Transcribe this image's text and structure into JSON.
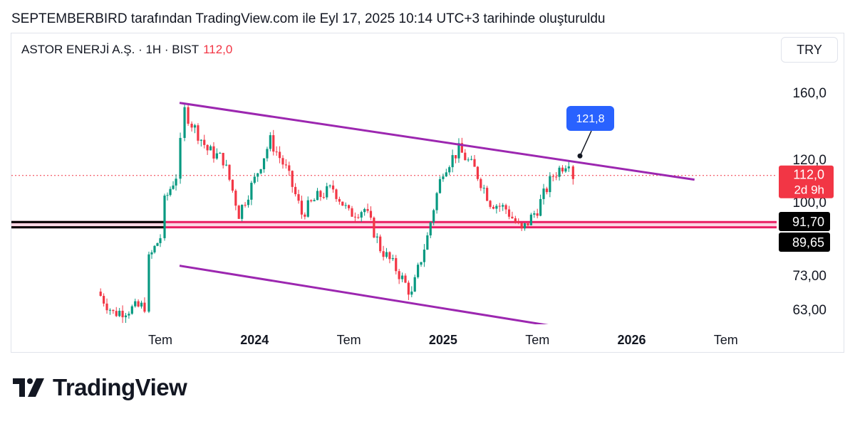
{
  "header": {
    "attribution": "SEPTEMBERBIRD tarafından TradingView.com ile Eyl 17, 2025 10:14 UTC+3 tarihinde oluşturuldu"
  },
  "legend": {
    "symbol_info": "ASTOR ENERJİ A.Ş. · 1H · BIST",
    "last_price": "112,0"
  },
  "currency": "TRY",
  "brand": {
    "name": "TradingView"
  },
  "colors": {
    "up": "#089981",
    "down": "#f23645",
    "trendline": "#9c27b0",
    "support_band": "#e91e63",
    "price_line": "#f23645",
    "callout": "#2962ff"
  },
  "chart_data": {
    "type": "candlestick",
    "symbol": "ASTOR ENERJİ A.Ş.",
    "interval": "1H",
    "exchange": "BIST",
    "y_scale": "log",
    "ylim": [
      57,
      180
    ],
    "y_ticks": [
      "160,0",
      "120,0",
      "100,0",
      "73,00",
      "63,00"
    ],
    "x_ticks": [
      "Tem",
      "2024",
      "Tem",
      "2025",
      "Tem",
      "2026",
      "Tem"
    ],
    "last_price": 112.0,
    "last_price_label": "112,0",
    "countdown_label": "2d 9h",
    "annotation": {
      "label": "121,8",
      "value": 121.8
    },
    "support_levels": [
      {
        "value": 91.7,
        "label": "91,70"
      },
      {
        "value": 89.65,
        "label": "89,65"
      }
    ],
    "trendlines": [
      {
        "name": "upper",
        "from": {
          "date": "2023-08",
          "value": 153
        },
        "to": {
          "date": "2026-05",
          "value": 110
        }
      },
      {
        "name": "lower",
        "from": {
          "date": "2023-08",
          "value": 76
        },
        "to": {
          "date": "2025-09",
          "value": 58
        }
      }
    ],
    "grid": false,
    "price_path": [
      {
        "date": "2023-03",
        "value": 68
      },
      {
        "date": "2023-04",
        "value": 62
      },
      {
        "date": "2023-06",
        "value": 64
      },
      {
        "date": "2023-06",
        "value": 78
      },
      {
        "date": "2023-07",
        "value": 86
      },
      {
        "date": "2023-07",
        "value": 100
      },
      {
        "date": "2023-08",
        "value": 112
      },
      {
        "date": "2023-08",
        "value": 128
      },
      {
        "date": "2023-08",
        "value": 148
      },
      {
        "date": "2023-09",
        "value": 140
      },
      {
        "date": "2023-10",
        "value": 125
      },
      {
        "date": "2023-11",
        "value": 120
      },
      {
        "date": "2023-12",
        "value": 95
      },
      {
        "date": "2024-01",
        "value": 110
      },
      {
        "date": "2024-02",
        "value": 130
      },
      {
        "date": "2024-03",
        "value": 115
      },
      {
        "date": "2024-04",
        "value": 95
      },
      {
        "date": "2024-05",
        "value": 102
      },
      {
        "date": "2024-06",
        "value": 106
      },
      {
        "date": "2024-07",
        "value": 95
      },
      {
        "date": "2024-08",
        "value": 97
      },
      {
        "date": "2024-09",
        "value": 82
      },
      {
        "date": "2024-10",
        "value": 75
      },
      {
        "date": "2024-11",
        "value": 67
      },
      {
        "date": "2024-12",
        "value": 86
      },
      {
        "date": "2025-01",
        "value": 115
      },
      {
        "date": "2025-02",
        "value": 125
      },
      {
        "date": "2025-03",
        "value": 115
      },
      {
        "date": "2025-04",
        "value": 100
      },
      {
        "date": "2025-05",
        "value": 97
      },
      {
        "date": "2025-06",
        "value": 88
      },
      {
        "date": "2025-07",
        "value": 97
      },
      {
        "date": "2025-08",
        "value": 112
      },
      {
        "date": "2025-09",
        "value": 120
      },
      {
        "date": "2025-09",
        "value": 112
      }
    ]
  }
}
